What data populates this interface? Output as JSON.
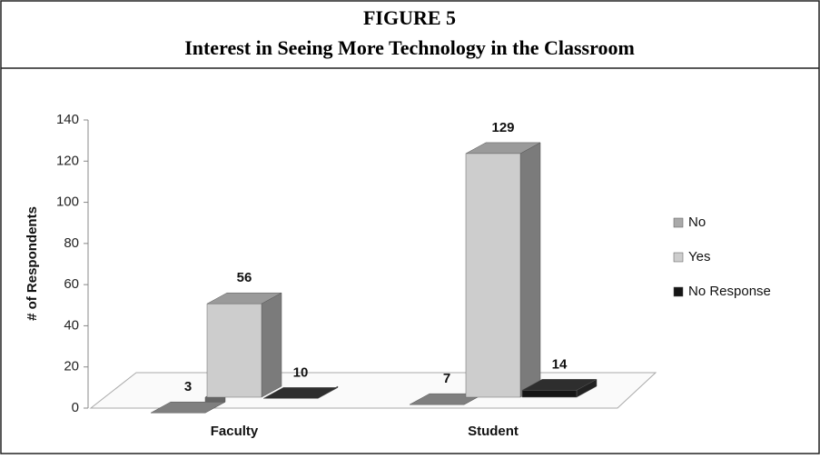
{
  "chart_data": {
    "type": "bar3d",
    "title": "FIGURE 5",
    "subtitle": "Interest in Seeing More Technology in the Classroom",
    "y_label": "# of Respondents",
    "categories": [
      "Faculty",
      "Student"
    ],
    "series": [
      {
        "name": "No",
        "color": "#a9a9a9",
        "values": [
          3,
          7
        ]
      },
      {
        "name": "Yes",
        "color": "#cdcdcd",
        "values": [
          56,
          129
        ]
      },
      {
        "name": "No Response",
        "color": "#151515",
        "values": [
          10,
          14
        ]
      }
    ],
    "ylim": [
      0,
      140
    ],
    "yticks": [
      0,
      20,
      40,
      60,
      80,
      100,
      120,
      140
    ],
    "legend": "right"
  }
}
